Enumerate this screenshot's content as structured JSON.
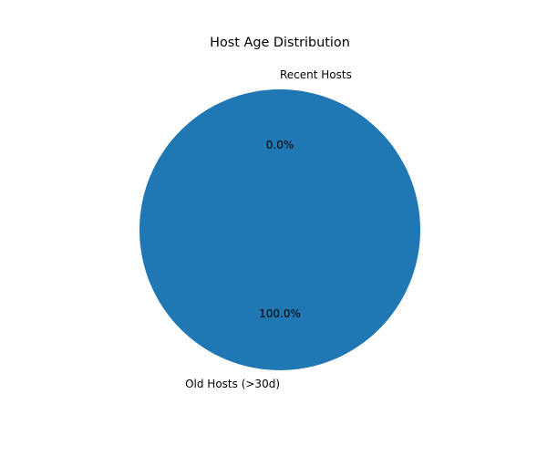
{
  "chart_data": {
    "type": "pie",
    "title": "Host Age Distribution",
    "categories": [
      "Recent Hosts",
      "Old Hosts (>30d)"
    ],
    "values": [
      0.0,
      100.0
    ],
    "percent_labels": [
      "0.0%",
      "100.0%"
    ],
    "colors": [
      "#ff7f0e",
      "#1f77b4"
    ],
    "start_angle_deg": 90,
    "legend": "none"
  }
}
